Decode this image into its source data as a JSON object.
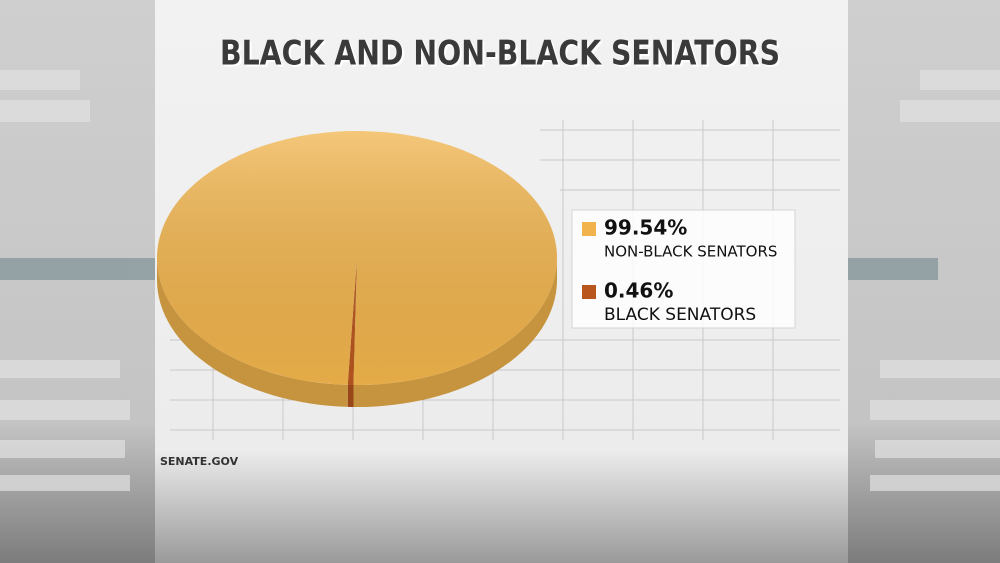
{
  "chart_data": {
    "type": "pie",
    "title": "BLACK AND NON-BLACK SENATORS",
    "categories": [
      "NON-BLACK SENATORS",
      "BLACK SENATORS"
    ],
    "values": [
      99.54,
      0.46
    ],
    "value_labels": [
      "99.54%",
      "0.46%"
    ],
    "colors": [
      "#f1b44c",
      "#b9561e"
    ],
    "source": "SENATE.GOV"
  }
}
